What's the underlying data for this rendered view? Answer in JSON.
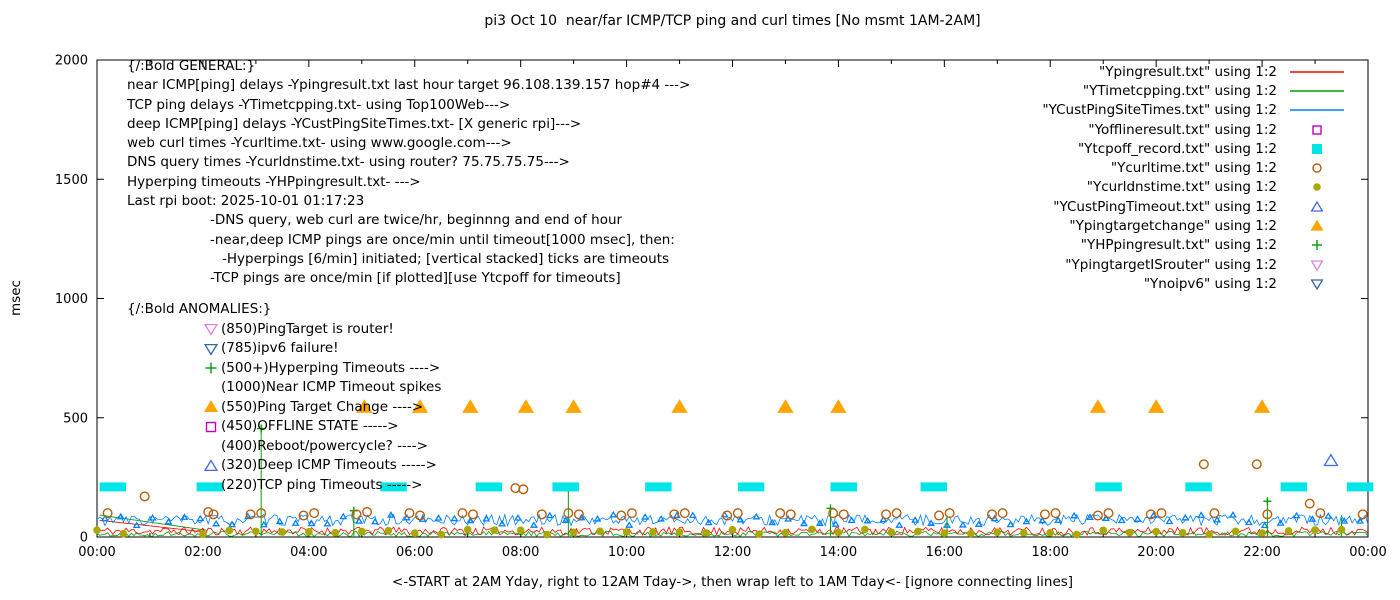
{
  "title": "pi3 Oct 10  near/far ICMP/TCP ping and curl times [No msmt 1AM-2AM]",
  "ylabel": "msec",
  "xlabel": "<-START at 2AM Yday, right to 12AM Tday->, then wrap left to 1AM Tday<- [ignore connecting lines]",
  "legend": [
    {
      "label": "\"Ypingresult.txt\" using 1:2",
      "type": "line",
      "color": "#ff0000"
    },
    {
      "label": "\"YTimetcpping.txt\" using 1:2",
      "type": "line",
      "color": "#00a000"
    },
    {
      "label": "\"YCustPingSiteTimes.txt\" using 1:2",
      "type": "line",
      "color": "#0080ff"
    },
    {
      "label": "\"Yofflineresult.txt\" using 1:2",
      "type": "square-open",
      "color": "#c000c0"
    },
    {
      "label": "\"Ytcpoff_record.txt\" using 1:2",
      "type": "square-filled",
      "color": "#00e5e5"
    },
    {
      "label": "\"Ycurltime.txt\" using 1:2",
      "type": "circle-open",
      "color": "#b85c0a"
    },
    {
      "label": "\"Ycurldnstime.txt\" using 1:2",
      "type": "circle-filled",
      "color": "#a8a800"
    },
    {
      "label": "\"YCustPingTimeout.txt\" using 1:2",
      "type": "tri-up-open",
      "color": "#4169e1"
    },
    {
      "label": "\"Ypingtargetchange\" using 1:2",
      "type": "tri-up-filled",
      "color": "#ffa500"
    },
    {
      "label": "\"YHPpingresult.txt\" using 1:2",
      "type": "plus",
      "color": "#00a000"
    },
    {
      "label": "\"YpingtargetISrouter\" using 1:2",
      "type": "tri-down-open",
      "color": "#e080e0"
    },
    {
      "label": "\"Ynoipv6\" using 1:2",
      "type": "tri-down-open",
      "color": "#3465a4"
    }
  ],
  "general_block": {
    "header": "{/:Bold GENERAL:}",
    "lines": [
      {
        "text": "near ICMP[ping] delays -Ypingresult.txt last hour target 96.108.139.157 hop#4 --->",
        "indent": 0
      },
      {
        "text": "TCP ping delays -YTimetcpping.txt- using Top100Web--->",
        "indent": 0
      },
      {
        "text": "deep ICMP[ping] delays -YCustPingSiteTimes.txt- [X generic rpi]--->",
        "indent": 0
      },
      {
        "text": "web curl times -Ycurltime.txt- using www.google.com--->",
        "indent": 0
      },
      {
        "text": "DNS query times -Ycurldnstime.txt- using router? 75.75.75.75--->",
        "indent": 0
      },
      {
        "text": "Hyperping timeouts -YHPpingresult.txt- --->",
        "indent": 0
      },
      {
        "text": "Last rpi boot: 2025-10-01 01:17:23",
        "indent": 0
      },
      {
        "text": "-DNS query, web curl are twice/hr, beginnng and end of hour",
        "indent": 1
      },
      {
        "text": "-near,deep ICMP pings are once/min until timeout[1000 msec], then:",
        "indent": 1
      },
      {
        "text": "-Hyperpings [6/min] initiated; [vertical stacked] ticks are timeouts",
        "indent": 2
      },
      {
        "text": "-TCP pings are once/min [if plotted][use Ytcpoff for timeouts]",
        "indent": 1
      }
    ]
  },
  "anomalies_block": {
    "header": "{/:Bold ANOMALIES:}",
    "items": [
      {
        "marker": "tri-down-open",
        "color": "#e080e0",
        "text": "(850)PingTarget is router!"
      },
      {
        "marker": "tri-down-open",
        "color": "#3465a4",
        "text": "(785)ipv6 failure!"
      },
      {
        "marker": "plus",
        "color": "#00a000",
        "text": "(500+)Hyperping Timeouts ---->"
      },
      {
        "marker": null,
        "color": null,
        "text": "(1000)Near ICMP Timeout spikes"
      },
      {
        "marker": "tri-up-filled",
        "color": "#ffa500",
        "text": "(550)Ping Target Change ---->"
      },
      {
        "marker": "square-open",
        "color": "#c000c0",
        "text": "(450)OFFLINE STATE ----->"
      },
      {
        "marker": null,
        "color": null,
        "text": "(400)Reboot/powercycle? ---->"
      },
      {
        "marker": "tri-up-open",
        "color": "#4169e1",
        "text": "(320)Deep ICMP Timeouts ----->"
      },
      {
        "marker": null,
        "color": null,
        "text": "(220)TCP ping Timeouts ----->"
      }
    ]
  },
  "chart_data": {
    "type": "scatter",
    "xlim": [
      0,
      24
    ],
    "ylim": [
      0,
      2000
    ],
    "grid": false,
    "legend_position": "top-right",
    "x_tick_hours": [
      0,
      2,
      4,
      6,
      8,
      10,
      12,
      14,
      16,
      18,
      20,
      22,
      24
    ],
    "x_tick_labels": [
      "00:00",
      "02:00",
      "04:00",
      "06:00",
      "08:00",
      "10:00",
      "12:00",
      "14:00",
      "16:00",
      "18:00",
      "20:00",
      "22:00",
      "00:00"
    ],
    "y_ticks": [
      0,
      500,
      1000,
      1500,
      2000
    ],
    "noise_series": [
      {
        "name": "Ypingresult",
        "color": "#ff0000",
        "base": 8,
        "amp": 34,
        "seed": 11
      },
      {
        "name": "YTimetcpping",
        "color": "#00a000",
        "base": 2,
        "amp": 22,
        "seed": 22,
        "spike_prob": 0.006,
        "spike_amp": 70
      },
      {
        "name": "YCustPingSiteTimes",
        "color": "#0080ff",
        "base": 48,
        "amp": 46,
        "seed": 33,
        "point_marker": true
      }
    ],
    "hyperping_spikes": {
      "name": "YHPpingresult",
      "color": "#00a000",
      "points": [
        [
          3.1,
          455
        ],
        [
          4.85,
          110
        ],
        [
          8.9,
          205
        ],
        [
          13.85,
          120
        ],
        [
          16.05,
          90
        ],
        [
          22.1,
          150
        ],
        [
          23.5,
          80
        ]
      ]
    },
    "tcp_timeouts": {
      "name": "Ytcpoff_record",
      "color": "#00e5e5",
      "y_msec": 210,
      "width_hours": 0.5,
      "x_hours": [
        0.3,
        2.13,
        5.6,
        7.4,
        8.85,
        10.6,
        12.35,
        14.1,
        15.8,
        19.1,
        20.8,
        22.6,
        23.85
      ]
    },
    "target_changes": {
      "name": "Ypingtargetchange",
      "color": "#ffa500",
      "y_msec": 545,
      "x_hours": [
        5.05,
        6.1,
        7.05,
        8.1,
        9.0,
        11.0,
        13.0,
        14.0,
        18.9,
        20.0,
        22.0
      ]
    },
    "curl_times": {
      "name": "Ycurltime",
      "color": "#b85c0a",
      "points": [
        [
          0.2,
          100
        ],
        [
          0.9,
          170
        ],
        [
          2.1,
          105
        ],
        [
          2.2,
          95
        ],
        [
          2.9,
          95
        ],
        [
          3.1,
          100
        ],
        [
          3.9,
          90
        ],
        [
          4.1,
          100
        ],
        [
          4.9,
          95
        ],
        [
          5.1,
          105
        ],
        [
          5.9,
          100
        ],
        [
          6.1,
          90
        ],
        [
          6.9,
          100
        ],
        [
          7.1,
          95
        ],
        [
          7.9,
          205
        ],
        [
          8.05,
          200
        ],
        [
          8.4,
          95
        ],
        [
          8.9,
          100
        ],
        [
          9.1,
          95
        ],
        [
          9.9,
          90
        ],
        [
          10.1,
          100
        ],
        [
          10.9,
          95
        ],
        [
          11.1,
          100
        ],
        [
          11.9,
          90
        ],
        [
          12.1,
          100
        ],
        [
          12.9,
          100
        ],
        [
          13.1,
          95
        ],
        [
          13.9,
          100
        ],
        [
          14.1,
          95
        ],
        [
          14.9,
          95
        ],
        [
          15.1,
          100
        ],
        [
          15.9,
          90
        ],
        [
          16.1,
          100
        ],
        [
          16.9,
          95
        ],
        [
          17.1,
          100
        ],
        [
          17.9,
          95
        ],
        [
          18.1,
          100
        ],
        [
          18.9,
          90
        ],
        [
          19.1,
          100
        ],
        [
          19.9,
          95
        ],
        [
          20.1,
          100
        ],
        [
          20.9,
          305
        ],
        [
          21.1,
          100
        ],
        [
          21.9,
          305
        ],
        [
          22.1,
          95
        ],
        [
          22.9,
          140
        ],
        [
          23.1,
          100
        ],
        [
          23.9,
          95
        ]
      ]
    },
    "dns_times": {
      "name": "Ycurldnstime",
      "color": "#a8a800",
      "y_base": 10,
      "y_amp": 22,
      "seed": 44,
      "x_hours": [
        0,
        0.5,
        2,
        2.5,
        3,
        3.5,
        4,
        4.5,
        5,
        5.5,
        6,
        6.5,
        7,
        7.5,
        8,
        8.5,
        9,
        9.5,
        10,
        10.5,
        11,
        11.5,
        12,
        12.5,
        13,
        13.5,
        14,
        14.5,
        15,
        15.5,
        16,
        16.5,
        17,
        17.5,
        18,
        18.5,
        19,
        19.5,
        20,
        20.5,
        21,
        21.5,
        22,
        22.5,
        23,
        23.5
      ]
    },
    "deep_timeouts": {
      "name": "YCustPingTimeout",
      "color": "#4169e1",
      "points": [
        [
          23.3,
          320
        ]
      ]
    },
    "connector_lines": [
      {
        "color": "#00a000",
        "from": [
          0.05,
          92
        ],
        "to": [
          2.08,
          28
        ]
      },
      {
        "color": "#ff0000",
        "from": [
          0.05,
          70
        ],
        "to": [
          2.08,
          20
        ]
      }
    ]
  }
}
